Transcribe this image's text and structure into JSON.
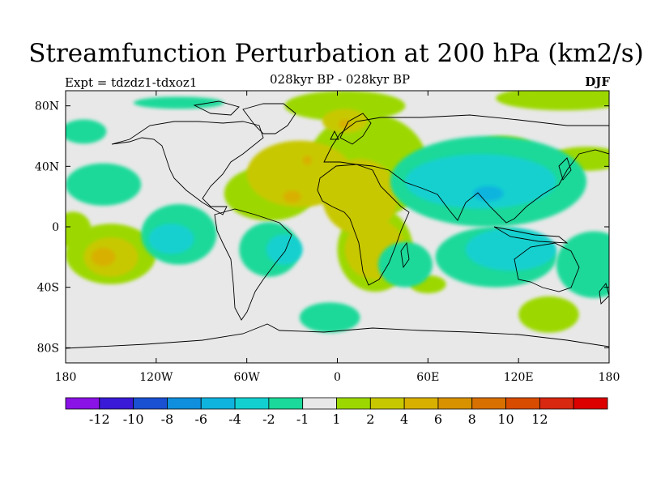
{
  "title": "Streamfunction Perturbation at 200 hPa (km2/s)",
  "experiment_label": "Expt = tdzdz1-tdxoz1",
  "subtitle": "028kyr BP - 028kyr BP",
  "season": "DJF",
  "axes": {
    "lat_ticks": [
      "80N",
      "40N",
      "0",
      "40S",
      "80S"
    ],
    "lon_ticks": [
      "180",
      "120W",
      "60W",
      "0",
      "60E",
      "120E",
      "180"
    ]
  },
  "colorbar": {
    "colors": [
      "#8a12e6",
      "#3a1ad6",
      "#1a50d2",
      "#0f8fdd",
      "#0fb4de",
      "#12d0d0",
      "#1ad99a",
      "#e8e8e8",
      "#9cd800",
      "#c8c800",
      "#d8b000",
      "#d89200",
      "#d87000",
      "#d84c00",
      "#d82810",
      "#dc0000"
    ],
    "labels": [
      "-12",
      "-10",
      "-8",
      "-6",
      "-4",
      "-2",
      "-1",
      "1",
      "2",
      "4",
      "6",
      "8",
      "10",
      "12"
    ]
  },
  "field": {
    "background": "#e8e8e8",
    "features": [
      {
        "kind": "positive",
        "level": "1",
        "color": "#9cd800",
        "lon": 150,
        "lat": 85,
        "rx": 45,
        "ry": 8
      },
      {
        "kind": "positive",
        "level": "1",
        "color": "#9cd800",
        "lon": 5,
        "lat": 80,
        "rx": 40,
        "ry": 10
      },
      {
        "kind": "positive",
        "level": "1",
        "color": "#9cd800",
        "lon": 20,
        "lat": 40,
        "rx": 40,
        "ry": 35
      },
      {
        "kind": "positive",
        "level": "1",
        "color": "#9cd800",
        "lon": -45,
        "lat": 22,
        "rx": 30,
        "ry": 18
      },
      {
        "kind": "positive",
        "level": "1",
        "color": "#9cd800",
        "lon": 25,
        "lat": -15,
        "rx": 25,
        "ry": 28
      },
      {
        "kind": "positive",
        "level": "1",
        "color": "#9cd800",
        "lon": -150,
        "lat": -18,
        "rx": 30,
        "ry": 20
      },
      {
        "kind": "positive",
        "level": "1",
        "color": "#9cd800",
        "lon": -175,
        "lat": -2,
        "rx": 12,
        "ry": 12
      },
      {
        "kind": "positive",
        "level": "1",
        "color": "#9cd800",
        "lon": 110,
        "lat": 52,
        "rx": 20,
        "ry": 8
      },
      {
        "kind": "positive",
        "level": "1",
        "color": "#9cd800",
        "lon": 165,
        "lat": 45,
        "rx": 25,
        "ry": 8
      },
      {
        "kind": "positive",
        "level": "1",
        "color": "#9cd800",
        "lon": 140,
        "lat": -58,
        "rx": 20,
        "ry": 12
      },
      {
        "kind": "positive",
        "level": "1",
        "color": "#9cd800",
        "lon": 60,
        "lat": -38,
        "rx": 12,
        "ry": 6
      },
      {
        "kind": "positive",
        "level": "2",
        "color": "#c8c800",
        "lon": -25,
        "lat": 35,
        "rx": 35,
        "ry": 22
      },
      {
        "kind": "positive",
        "level": "2",
        "color": "#c8c800",
        "lon": 15,
        "lat": 20,
        "rx": 25,
        "ry": 25
      },
      {
        "kind": "positive",
        "level": "2",
        "color": "#c8c800",
        "lon": 25,
        "lat": -15,
        "rx": 20,
        "ry": 20
      },
      {
        "kind": "positive",
        "level": "2",
        "color": "#c8c800",
        "lon": -150,
        "lat": -20,
        "rx": 18,
        "ry": 13
      },
      {
        "kind": "positive",
        "level": "2",
        "color": "#c8c800",
        "lon": 5,
        "lat": 70,
        "rx": 15,
        "ry": 8
      },
      {
        "kind": "positive",
        "level": "4",
        "color": "#d8b000",
        "lon": -30,
        "lat": 20,
        "rx": 6,
        "ry": 4
      },
      {
        "kind": "positive",
        "level": "4",
        "color": "#d8b000",
        "lon": 5,
        "lat": 68,
        "rx": 4,
        "ry": 3
      },
      {
        "kind": "positive",
        "level": "4",
        "color": "#d8b000",
        "lon": -20,
        "lat": 44,
        "rx": 3,
        "ry": 3
      },
      {
        "kind": "positive",
        "level": "4",
        "color": "#d8b000",
        "lon": -155,
        "lat": -20,
        "rx": 8,
        "ry": 6
      },
      {
        "kind": "negative",
        "level": "-1",
        "color": "#1ad99a",
        "lon": -155,
        "lat": 28,
        "rx": 25,
        "ry": 14
      },
      {
        "kind": "negative",
        "level": "-1",
        "color": "#1ad99a",
        "lon": -168,
        "lat": 63,
        "rx": 15,
        "ry": 8
      },
      {
        "kind": "negative",
        "level": "-1",
        "color": "#1ad99a",
        "lon": -105,
        "lat": 82,
        "rx": 30,
        "ry": 4
      },
      {
        "kind": "negative",
        "level": "-1",
        "color": "#1ad99a",
        "lon": 100,
        "lat": 30,
        "rx": 65,
        "ry": 30
      },
      {
        "kind": "negative",
        "level": "-1",
        "color": "#1ad99a",
        "lon": 45,
        "lat": -25,
        "rx": 18,
        "ry": 15
      },
      {
        "kind": "negative",
        "level": "-1",
        "color": "#1ad99a",
        "lon": 105,
        "lat": -20,
        "rx": 40,
        "ry": 20
      },
      {
        "kind": "negative",
        "level": "-1",
        "color": "#1ad99a",
        "lon": -45,
        "lat": -15,
        "rx": 20,
        "ry": 18
      },
      {
        "kind": "negative",
        "level": "-1",
        "color": "#1ad99a",
        "lon": -5,
        "lat": -60,
        "rx": 20,
        "ry": 10
      },
      {
        "kind": "negative",
        "level": "-1",
        "color": "#1ad99a",
        "lon": -105,
        "lat": -5,
        "rx": 25,
        "ry": 20
      },
      {
        "kind": "negative",
        "level": "-1",
        "color": "#1ad99a",
        "lon": 170,
        "lat": -25,
        "rx": 25,
        "ry": 22
      },
      {
        "kind": "negative",
        "level": "-2",
        "color": "#12d0d0",
        "lon": 95,
        "lat": 30,
        "rx": 50,
        "ry": 18
      },
      {
        "kind": "negative",
        "level": "-2",
        "color": "#12d0d0",
        "lon": 115,
        "lat": -15,
        "rx": 30,
        "ry": 14
      },
      {
        "kind": "negative",
        "level": "-2",
        "color": "#12d0d0",
        "lon": -110,
        "lat": -8,
        "rx": 15,
        "ry": 10
      },
      {
        "kind": "negative",
        "level": "-2",
        "color": "#12d0d0",
        "lon": -35,
        "lat": -15,
        "rx": 12,
        "ry": 10
      },
      {
        "kind": "negative",
        "level": "-4",
        "color": "#0fb4de",
        "lon": 100,
        "lat": 22,
        "rx": 10,
        "ry": 5
      }
    ]
  }
}
